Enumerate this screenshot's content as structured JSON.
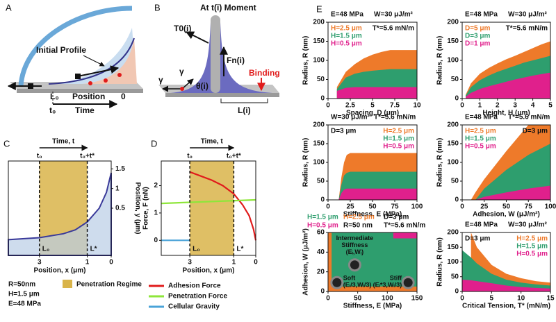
{
  "diagrams": {
    "A": {
      "label": "A",
      "initial_profile": "Initial Profile",
      "l0": "L₀",
      "position": "Position",
      "zero": "0",
      "t0": "t₀",
      "time": "Time"
    },
    "B": {
      "label": "B",
      "title": "At t(i) Moment",
      "t0": "T0(i)",
      "fn": "Fn(i)",
      "gamma_left": "γ",
      "gamma_right": "γ",
      "theta": "θ(i)",
      "binding": "Binding",
      "length": "L(i)"
    }
  },
  "parameters": [
    "R=50nm",
    "H=1.5 μm",
    "E=48 MPa"
  ],
  "panel_e": "E",
  "chart_data": [
    {
      "type": "area",
      "label": "C",
      "x_label": "Position, x (μm)",
      "y_label": "Position, y (μm)",
      "yaxis": "right",
      "top_label": "Time, t",
      "top_ticks": [
        {
          "value": 3,
          "label": "t₀"
        },
        {
          "value": 1,
          "label": "t₀+t*"
        }
      ],
      "markers": [
        {
          "value": 3,
          "label": "L₀"
        },
        {
          "value": 1,
          "label": "L*"
        }
      ],
      "xlim": [
        4.3,
        0
      ],
      "xticks": [
        3,
        1,
        0
      ],
      "ylim": [
        -0.7,
        1.7
      ],
      "yticks": [
        0.5,
        1,
        1.5
      ],
      "shade": {
        "color": "#d9b44a",
        "x": [
          3,
          1
        ]
      },
      "x": [
        4.3,
        3,
        2,
        1.5,
        1,
        0.5,
        0.2,
        0
      ],
      "series": [
        {
          "color": "#3a3a9a",
          "values": [
            -0.3,
            -0.25,
            -0.15,
            -0.05,
            0.15,
            0.5,
            0.9,
            1.4
          ]
        }
      ]
    },
    {
      "type": "line",
      "label": "D",
      "x_label": "Position, x (μm)",
      "y_label": "Force, F (nN)",
      "yaxis": "left",
      "top_label": "Time, t",
      "top_ticks": [
        {
          "value": 3,
          "label": "t₀"
        },
        {
          "value": 1,
          "label": "t₀+t*"
        }
      ],
      "markers": [
        {
          "value": 3,
          "label": "L₀"
        },
        {
          "value": 1,
          "label": "L*"
        }
      ],
      "xlim": [
        4.3,
        0
      ],
      "xticks": [
        3,
        1,
        0
      ],
      "ylim": [
        -0.55,
        2.9
      ],
      "yticks": [
        0,
        1,
        2
      ],
      "shade": {
        "name": "Penetration Regime",
        "color": "#d9b44a",
        "x": [
          3,
          1
        ]
      },
      "series": [
        {
          "name": "Adhesion Force",
          "color": "#e01b1b",
          "x": [
            3,
            2.5,
            2,
            1.5,
            1,
            0.6,
            0.3,
            0.1,
            0
          ],
          "values": [
            2.5,
            2.35,
            2.2,
            2.0,
            1.7,
            1.3,
            0.9,
            0.4,
            0
          ]
        },
        {
          "name": "Penetration Force",
          "color": "#8ee63a",
          "x": [
            4.3,
            0
          ],
          "values": [
            1.35,
            1.48
          ]
        },
        {
          "name": "Cellular Gravity",
          "color": "#4aa3d8",
          "x": [
            4.3,
            3
          ],
          "values": [
            0,
            0
          ]
        }
      ]
    },
    {
      "type": "area",
      "header": [
        "E=48 MPa",
        "W=30 μJ/m²"
      ],
      "notes": [
        "T*=5.6 mN/m"
      ],
      "legend": "upper left",
      "x_label": "Spacing, D (μm)",
      "y_label": "Radius, R (nm)",
      "xlim": [
        0,
        10
      ],
      "xticks": [
        0,
        2.5,
        5,
        7.5,
        10
      ],
      "ylim": [
        0,
        200
      ],
      "yticks": [
        0,
        50,
        100,
        150,
        200
      ],
      "x": [
        1,
        2,
        3,
        4,
        5,
        6,
        7,
        8,
        9,
        10
      ],
      "series": [
        {
          "name": "H=2.5 μm",
          "color": "#ee7a2a",
          "values": [
            30,
            70,
            90,
            105,
            115,
            122,
            127,
            127,
            127,
            127
          ]
        },
        {
          "name": "H=1.5 μm",
          "color": "#2e9e6e",
          "values": [
            25,
            55,
            65,
            70,
            73,
            75,
            77,
            77,
            77,
            77
          ]
        },
        {
          "name": "H=0.5 μm",
          "color": "#e0208c",
          "values": [
            20,
            28,
            30,
            30,
            30,
            30,
            30,
            30,
            30,
            30
          ]
        }
      ]
    },
    {
      "type": "area",
      "header": [
        "E=48 MPa",
        "W=30 μJ/m²"
      ],
      "notes": [
        "T*=5.6 mN/m"
      ],
      "legend": "upper left",
      "x_label": "Height, H (μm)",
      "y_label": "Radius, R (nm)",
      "xlim": [
        0,
        5
      ],
      "xticks": [
        0,
        1,
        2,
        3,
        4,
        5
      ],
      "ylim": [
        0,
        200
      ],
      "yticks": [
        0,
        50,
        100,
        150,
        200
      ],
      "x": [
        0.2,
        0.5,
        1,
        1.5,
        2,
        2.5,
        3,
        3.5,
        4,
        4.5,
        5
      ],
      "series": [
        {
          "name": "D=5 μm",
          "color": "#ee7a2a",
          "values": [
            10,
            40,
            65,
            80,
            92,
            103,
            112,
            122,
            132,
            142,
            150
          ]
        },
        {
          "name": "D=3 μm",
          "color": "#2e9e6e",
          "values": [
            8,
            30,
            48,
            60,
            70,
            78,
            86,
            94,
            100,
            106,
            112
          ]
        },
        {
          "name": "D=1 μm",
          "color": "#e0208c",
          "values": [
            5,
            15,
            25,
            32,
            38,
            44,
            50,
            55,
            60,
            64,
            68
          ]
        }
      ]
    },
    {
      "type": "area",
      "header": [
        "W=30 μJ/m²",
        "T*=5.6 mN/m"
      ],
      "notes": [
        "D=3 μm"
      ],
      "legend": "upper right",
      "x_label": "Stiffness, E (MPa)",
      "y_label": "Radius, R (nm)",
      "xlim": [
        0,
        100
      ],
      "xticks": [
        0,
        25,
        50,
        75,
        100
      ],
      "ylim": [
        0,
        200
      ],
      "yticks": [
        0,
        50,
        100,
        150,
        200
      ],
      "x": [
        12,
        15,
        18,
        21,
        25,
        50,
        75,
        100
      ],
      "series": [
        {
          "name": "H=2.5 μm",
          "color": "#ee7a2a",
          "values": [
            0,
            60,
            100,
            120,
            125,
            125,
            125,
            125
          ]
        },
        {
          "name": "H=1.5 μm",
          "color": "#2e9e6e",
          "values": [
            0,
            40,
            65,
            72,
            75,
            75,
            75,
            75
          ]
        },
        {
          "name": "H=0.5 μm",
          "color": "#e0208c",
          "values": [
            0,
            18,
            27,
            30,
            30,
            30,
            30,
            30
          ]
        }
      ]
    },
    {
      "type": "area",
      "header": [
        "E=48 MPa",
        "T*=5.6 mN/m"
      ],
      "notes": [
        "D=3 μm"
      ],
      "legend": "upper left",
      "x_label": "Adhesion, W (μJ/m²)",
      "y_label": "Radius, R (nm)",
      "xlim": [
        0,
        100
      ],
      "xticks": [
        0,
        25,
        50,
        75,
        100
      ],
      "ylim": [
        0,
        200
      ],
      "yticks": [
        0,
        50,
        100,
        150,
        200
      ],
      "x": [
        0,
        10,
        15,
        25,
        50,
        75,
        100
      ],
      "series": [
        {
          "name": "H=2.5 μm",
          "color": "#ee7a2a",
          "values": [
            null,
            0,
            20,
            55,
            130,
            200,
            200
          ]
        },
        {
          "name": "H=1.5 μm",
          "color": "#2e9e6e",
          "values": [
            null,
            null,
            0,
            30,
            80,
            120,
            150
          ]
        },
        {
          "name": "H=0.5 μm",
          "color": "#e0208c",
          "values": [
            null,
            null,
            0,
            8,
            20,
            30,
            38
          ]
        }
      ]
    },
    {
      "type": "region",
      "notes": [
        "D=3 μm",
        "R=50 nm",
        "T*=5.6 mN/m"
      ],
      "x_label": "Stiffness, E (MPa)",
      "y_label": "Adhesion, W (μJ/m²)",
      "xlim": [
        0,
        150
      ],
      "xticks": [
        0,
        50,
        100,
        150
      ],
      "ylim": [
        0,
        60
      ],
      "yticks": [
        0,
        20,
        40,
        60
      ],
      "series": [
        {
          "name": "H=2.5 μm",
          "color": "#ee7a2a",
          "x": [
            0,
            150
          ],
          "values": [
            0,
            60
          ]
        },
        {
          "name": "H=1.5 μm",
          "color": "#2e9e6e",
          "x": [
            6,
            150
          ],
          "values": [
            5,
            60
          ]
        },
        {
          "name": "H=0.5 μm",
          "color": "#e0208c",
          "x": [
            110,
            150
          ],
          "values": [
            54,
            60
          ]
        }
      ],
      "points": {
        "x": [
          45,
          15,
          135
        ],
        "values": [
          27,
          9,
          9
        ],
        "labels": [
          [
            "Intermediate",
            "Stiffness",
            "(Eᵢ,Wᵢ)"
          ],
          [
            "Soft",
            "(Eᵢ/3,Wᵢ/3)"
          ],
          [
            "Stiff",
            "(Eᵢ*3,Wᵢ/3)"
          ]
        ]
      }
    },
    {
      "type": "area",
      "header": [
        "E=48 MPa",
        "W=30 μJ/m²"
      ],
      "notes": [
        "D=3 μm"
      ],
      "legend": "upper right",
      "x_label": "Critical Tension, T* (mN/m)",
      "y_label": "Radius, R (nm)",
      "xlim": [
        0,
        15
      ],
      "xticks": [
        0,
        5,
        10,
        15
      ],
      "ylim": [
        0,
        200
      ],
      "yticks": [
        0,
        50,
        100,
        150,
        200
      ],
      "x": [
        0,
        1.5,
        2.5,
        5,
        7.5,
        10,
        12.5,
        15
      ],
      "series": [
        {
          "name": "H=2.5 μm",
          "color": "#ee7a2a",
          "values": [
            null,
            200,
            150,
            90,
            60,
            45,
            35,
            30
          ]
        },
        {
          "name": "H=1.5 μm",
          "color": "#2e9e6e",
          "values": [
            140,
            115,
            95,
            60,
            40,
            30,
            24,
            20
          ]
        },
        {
          "name": "H=0.5 μm",
          "color": "#e0208c",
          "values": [
            40,
            38,
            35,
            28,
            20,
            15,
            12,
            10
          ]
        }
      ]
    }
  ]
}
